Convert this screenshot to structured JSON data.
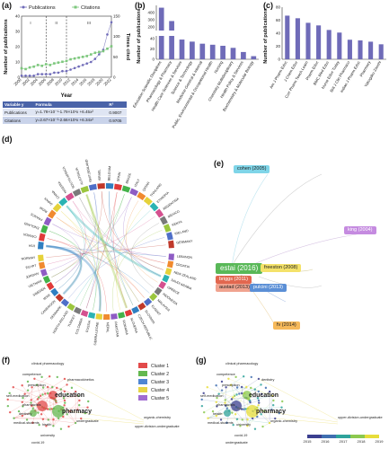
{
  "labels": {
    "a": "(a)",
    "b": "(b)",
    "c": "(c)",
    "d": "(d)",
    "e": "(e)",
    "f": "(f)",
    "g": "(g)"
  },
  "chart_data": [
    {
      "panel": "a",
      "type": "line",
      "legend": [
        "Publications",
        "Citations"
      ],
      "xlabel": "Year",
      "ylabel": "Number of publications",
      "y2label": "Times cited",
      "x": [
        2000,
        2001,
        2002,
        2003,
        2004,
        2005,
        2006,
        2007,
        2008,
        2009,
        2010,
        2011,
        2012,
        2013,
        2014,
        2015,
        2016,
        2017,
        2018,
        2019,
        2020,
        2021,
        2022
      ],
      "xticks": [
        "2000",
        "2002",
        "2004",
        "2006",
        "2008",
        "2010",
        "2012",
        "2014",
        "2016",
        "2018",
        "2020",
        "2022"
      ],
      "ylim": [
        0,
        40
      ],
      "yticks": [
        "0",
        "10",
        "20",
        "30",
        "40"
      ],
      "y2lim": [
        0,
        150
      ],
      "y2ticks": [
        "0",
        "50",
        "100",
        "150"
      ],
      "series": [
        {
          "name": "Publications",
          "color": "#6f6bb8",
          "axis": "left",
          "values": [
            1,
            1,
            1,
            1,
            2,
            2,
            2,
            2,
            3,
            3,
            4,
            4,
            5,
            6,
            7,
            8,
            9,
            10,
            12,
            15,
            18,
            28,
            36
          ]
        },
        {
          "name": "Citations",
          "color": "#7dc77d",
          "axis": "right",
          "values": [
            22,
            20,
            24,
            26,
            30,
            28,
            32,
            30,
            34,
            36,
            38,
            40,
            44,
            46,
            48,
            50,
            52,
            56,
            60,
            62,
            64,
            70,
            76
          ]
        }
      ],
      "periods": [
        "I",
        "II",
        "III"
      ],
      "period_boundaries": [
        2006,
        2011
      ],
      "table": {
        "headers": [
          "Variable y",
          "Formula",
          "R²"
        ],
        "rows": [
          [
            "Publications",
            "y=1.79×10⁻¹-1.79×10¹x +6.45x²",
            "0.9007"
          ],
          [
            "Citations",
            "y=2.67×10⁻²-2.66×10¹x +6.34x²",
            "0.9705"
          ]
        ]
      }
    },
    {
      "panel": "b",
      "type": "bar",
      "ylabel": "Number of publications",
      "broken_axis": true,
      "yticks_upper": [
        "200",
        "300",
        "400"
      ],
      "yticks_lower": [
        "0",
        "20",
        "40"
      ],
      "categories": [
        "Education Scientific Disciplines",
        "Pharmacology & Pharmacy",
        "Health Care Sciences & Services",
        "Science & Technology",
        "Medicine General & Internal",
        "Public, Environmental & Occupational Health",
        "Nursing",
        "Chemistry Multidisciplinary",
        "Health Policy & Services",
        "Biochemistry & Molecular Biology"
      ],
      "values": [
        468,
        282,
        38,
        34,
        30,
        28,
        26,
        22,
        14,
        6
      ],
      "color": "#6f6bb8"
    },
    {
      "panel": "c",
      "type": "bar",
      "ylabel": "Number of publications",
      "ylim": [
        0,
        80
      ],
      "yticks": [
        "0",
        "20",
        "40",
        "60",
        "80"
      ],
      "categories": [
        "Am J Pharm Educ",
        "J Chem Educ",
        "Curr Pharm Teach Learn",
        "Pharm Educ",
        "BMC Med Educ",
        "Nurse Educ Today",
        "Brit J Clin Pharmaco",
        "Indian J Pharm Educ",
        "Pharmacy",
        "Yakugaku Zasshi"
      ],
      "values": [
        67,
        63,
        56,
        52,
        45,
        41,
        30,
        29,
        27,
        23
      ],
      "color": "#6f6bb8"
    }
  ],
  "chord": {
    "left_countries": [
      "LEBANON",
      "CROATIA",
      "NEW ZEALAND",
      "SAUDI ARABIA",
      "GREECE",
      "INDONESIA",
      "MALAYSIA",
      "KUWAIT",
      "SLOVAKIA",
      "CZECH REPUBLIC",
      "SLOVENIA",
      "ROMANIA",
      "PAKISTAN",
      "NEPAL",
      "SIERRA LEONE",
      "RUSSIA",
      "COLOMBIA",
      "TURKEY",
      "NORTH IRELAND",
      "DENMARK",
      "CAMEROON",
      "IRAN",
      "SWEDEN",
      "VIETNAM",
      "JORDAN",
      "EGYPT",
      "NORWAY"
    ],
    "right_countries": [
      "USA",
      "CANADA",
      "ENGLAND",
      "FRANCE",
      "INDIA",
      "JAPAN",
      "CHINA",
      "NIGERIA",
      "SOUTH AFRICA",
      "AUSTRALIA",
      "SWITZERLAND",
      "ISRAEL",
      "BELGIUM",
      "SPAIN",
      "BRAZIL",
      "ITALY",
      "QATAR",
      "THAILAND",
      "ETHIOPIA",
      "ARGENTINA",
      "MEXICO",
      "KENYA",
      "IRELAND",
      "GERMANY"
    ]
  },
  "citation_network": {
    "nodes": [
      {
        "label": "cohen (2005)",
        "color": "#7fd5e8"
      },
      {
        "label": "king (2004)",
        "color": "#c58be0"
      },
      {
        "label": "estai (2016)",
        "color": "#59b858"
      },
      {
        "label": "freeston (2008)",
        "color": "#f4e26a"
      },
      {
        "label": "briggs (2011)",
        "color": "#e2674f"
      },
      {
        "label": "austad (2013)",
        "color": "#f0a38f"
      },
      {
        "label": "pulcini (2013)",
        "color": "#5b8fd6"
      },
      {
        "label": "fv (2014)",
        "color": "#f6b95a"
      }
    ]
  },
  "cluster_map": {
    "clusters": [
      {
        "name": "Cluster 1",
        "color": "#e24a4a"
      },
      {
        "name": "Cluster 2",
        "color": "#63b84f"
      },
      {
        "name": "Cluster 3",
        "color": "#4f86d3"
      },
      {
        "name": "Cluster 4",
        "color": "#e7d548"
      },
      {
        "name": "Cluster 5",
        "color": "#a06bd1"
      }
    ],
    "terms_f": [
      "clinical pharmacology",
      "competence",
      "prescription",
      "self-medication",
      "pharmacists",
      "education",
      "pharmacy",
      "medical-students",
      "pharmacokinetics",
      "dentistry",
      "health",
      "university",
      "covid-19",
      "undergraduate",
      "organic-chemistry",
      "upper-division-undergraduate"
    ],
    "terms_g": [
      "clinical pharmacology",
      "competence",
      "prescription",
      "self-medication",
      "pharmacists",
      "education",
      "pharmacy",
      "medical-students",
      "dentistry",
      "health",
      "university",
      "covid-19",
      "undergraduate",
      "organic-chemistry",
      "upper-division-undergraduate"
    ],
    "year_scale": [
      "2015",
      "2016",
      "2017",
      "2018",
      "2019"
    ]
  }
}
